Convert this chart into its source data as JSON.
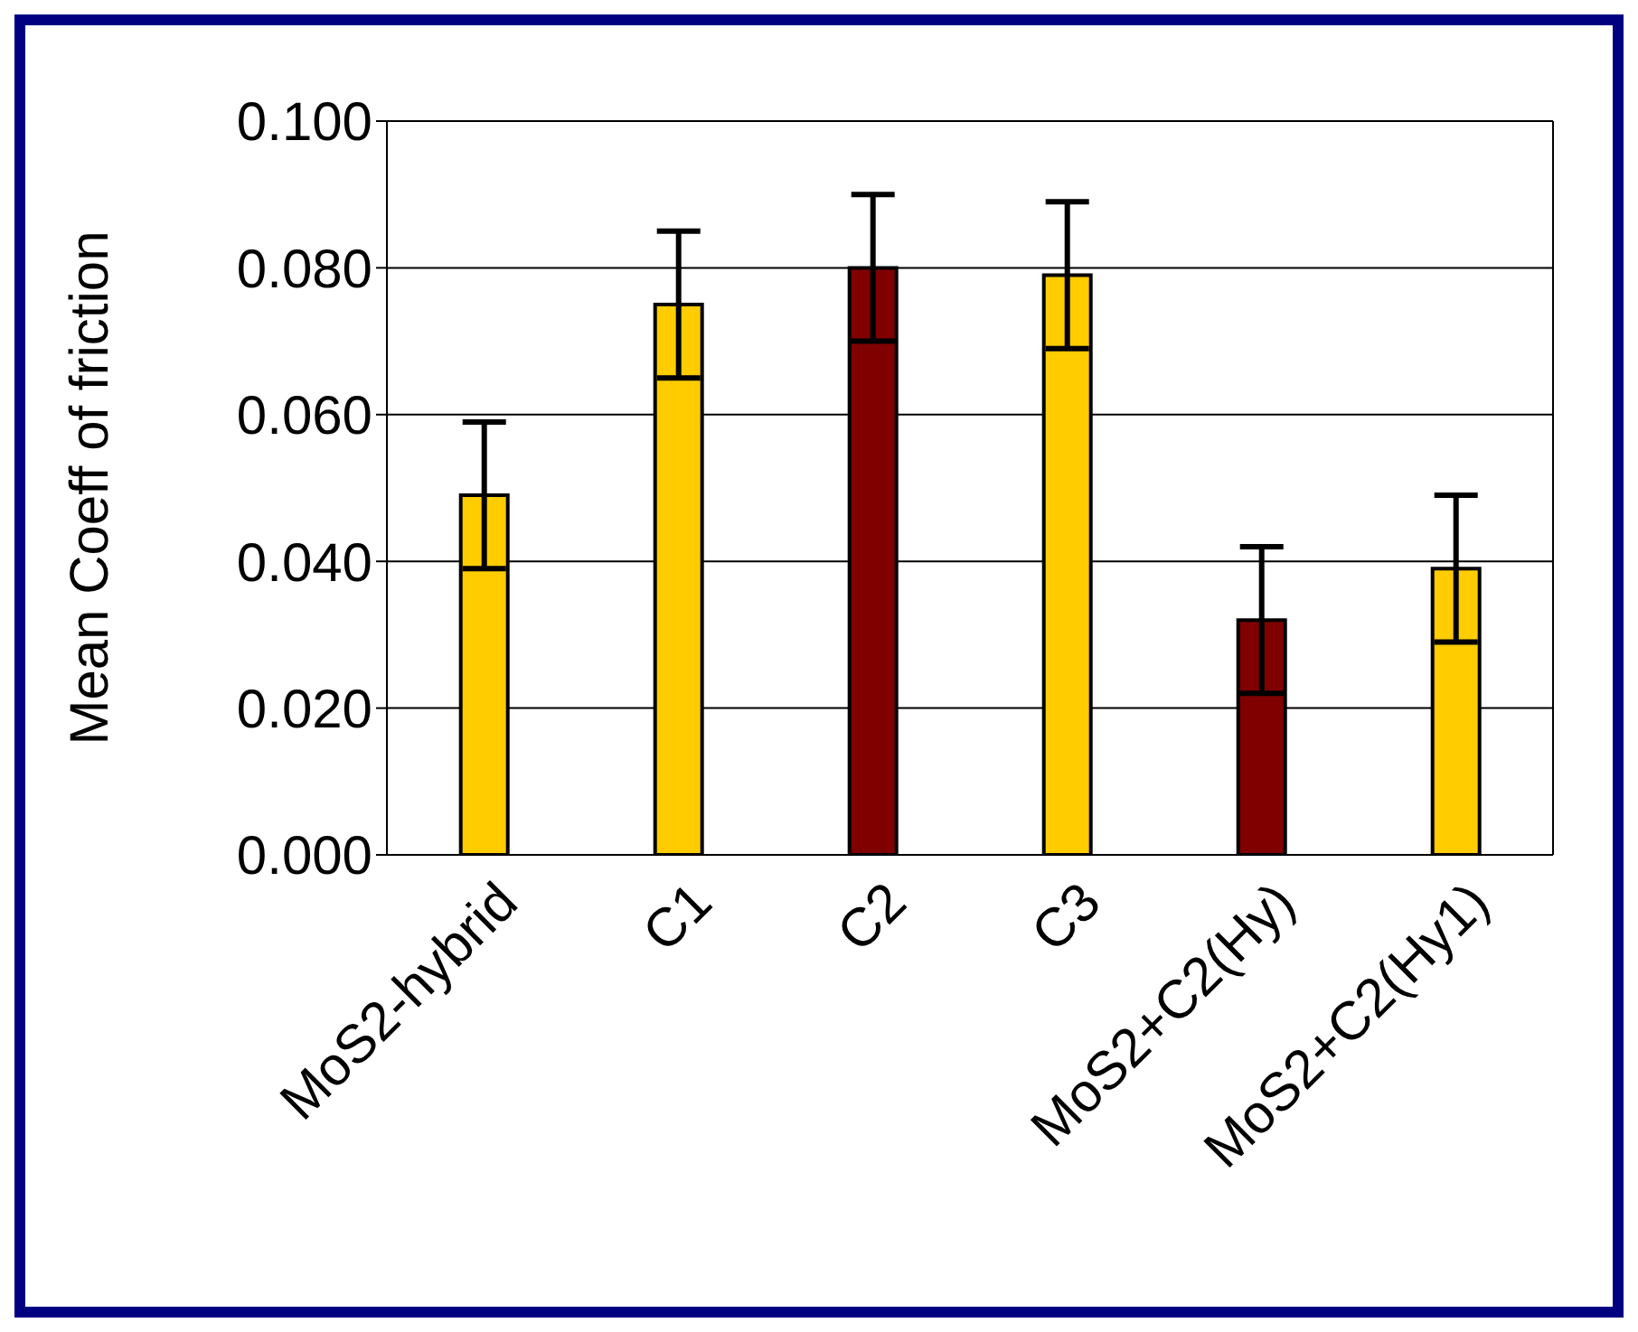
{
  "chart_data": {
    "type": "bar",
    "ylabel": "Mean Coeff of friction",
    "categories": [
      "MoS2-hybrid",
      "C1",
      "C2",
      "C3",
      "MoS2+C2(Hy)",
      "MoS2+C2(Hy1)"
    ],
    "values": [
      0.049,
      0.075,
      0.08,
      0.079,
      0.032,
      0.039
    ],
    "errors": [
      0.01,
      0.01,
      0.01,
      0.01,
      0.01,
      0.01
    ],
    "colors": [
      "#ffcc00",
      "#ffcc00",
      "#800000",
      "#ffcc00",
      "#800000",
      "#ffcc00"
    ],
    "ylim": [
      0,
      0.1
    ],
    "yticks": [
      {
        "value": 0,
        "label": "0.000"
      },
      {
        "value": 0.02,
        "label": "0.020"
      },
      {
        "value": 0.04,
        "label": "0.040"
      },
      {
        "value": 0.06,
        "label": "0.060"
      },
      {
        "value": 0.08,
        "label": "0.080"
      },
      {
        "value": 0.1,
        "label": "0.100"
      }
    ],
    "grid": "y",
    "legend": false
  }
}
